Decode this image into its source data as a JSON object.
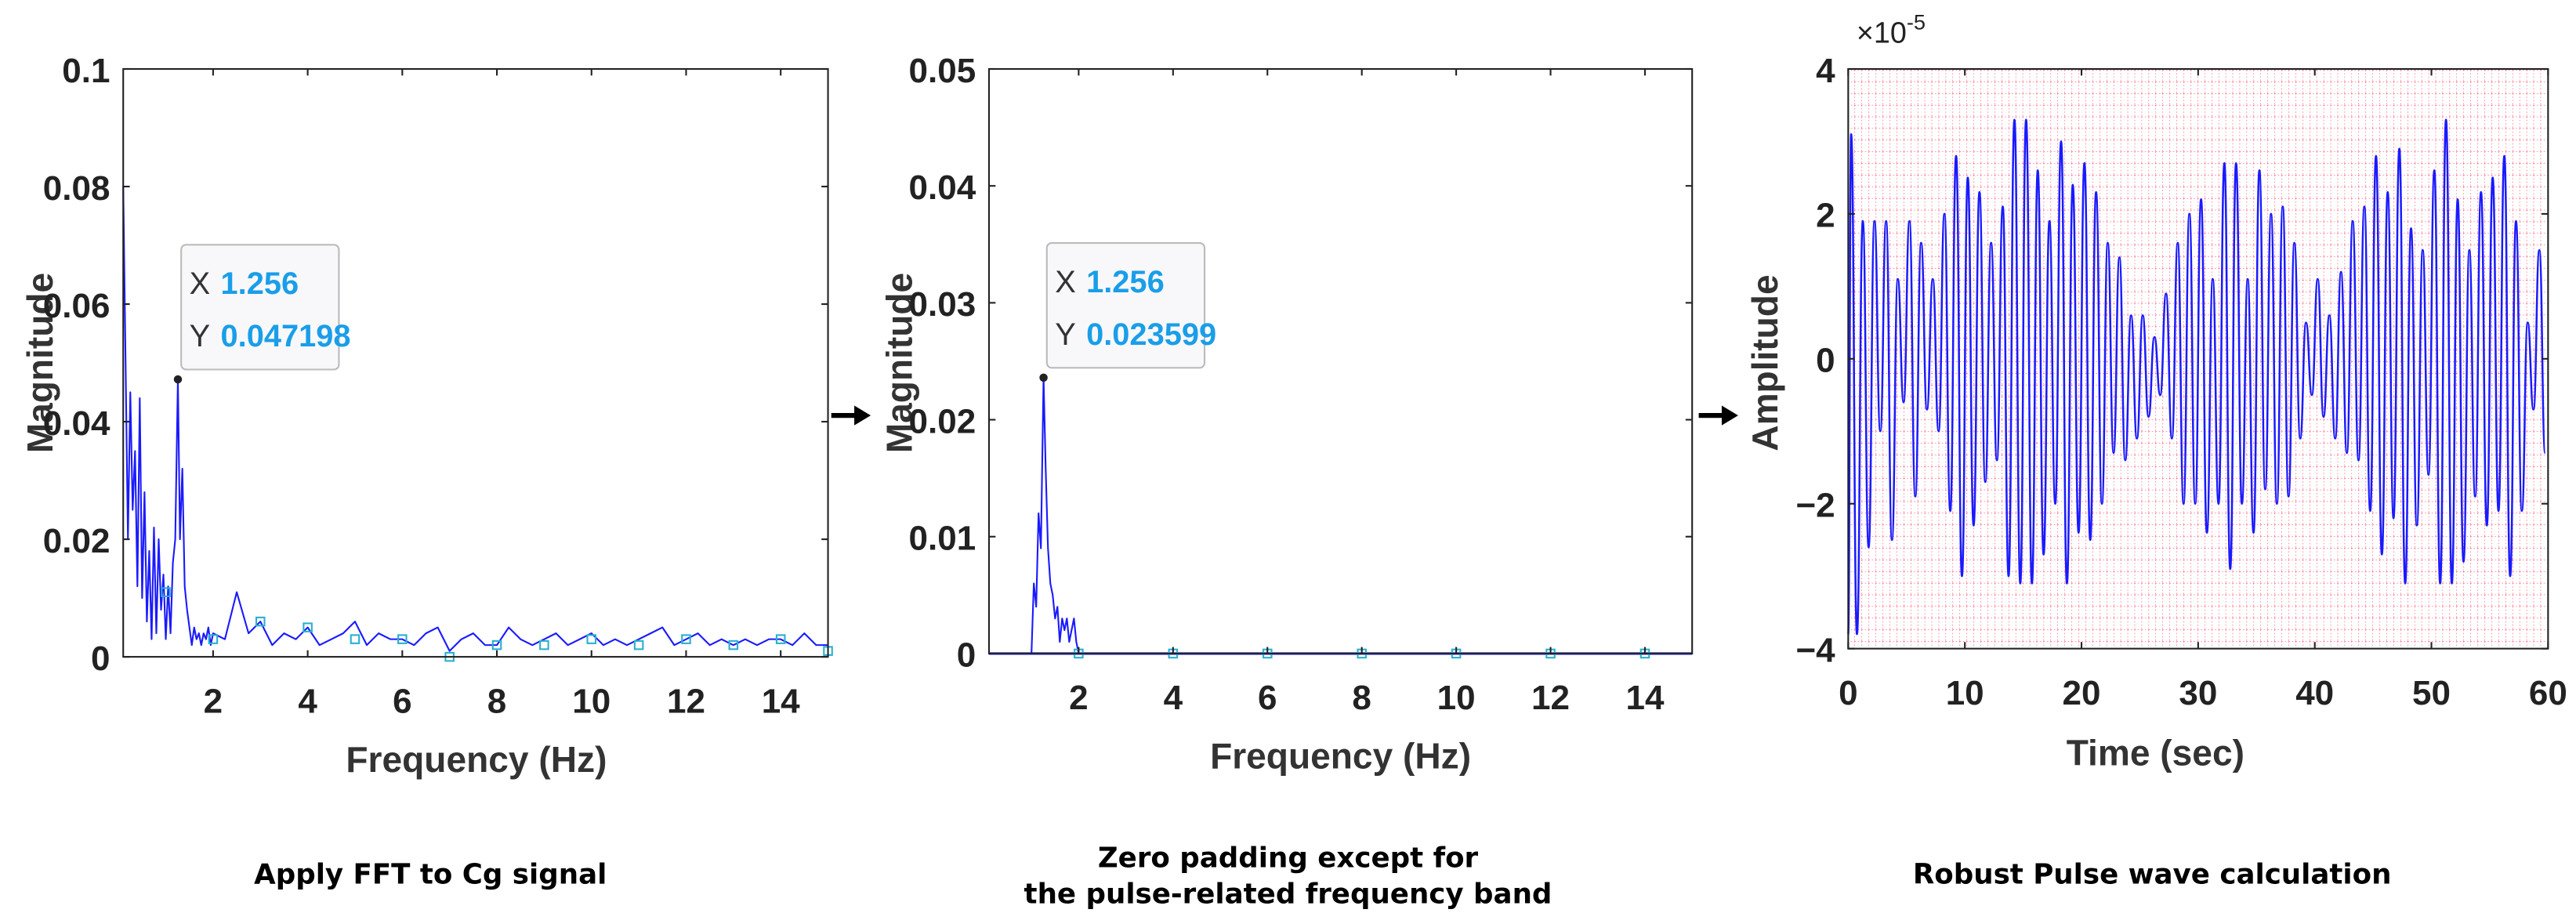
{
  "colors": {
    "line": "#1a1aff",
    "marker": "#2ab0d0",
    "grid": "#ff2a55",
    "datatip_value": "#1a9ee8",
    "axis": "#222222"
  },
  "icons": {
    "arrow": "right-arrow-icon"
  },
  "chart_data": [
    {
      "type": "line",
      "caption": "Apply FFT to Cg signal",
      "xlabel": "Frequency (Hz)",
      "ylabel": "Magnitude",
      "xlim": [
        0.1,
        15
      ],
      "ylim": [
        0,
        0.1
      ],
      "xticks": [
        "2",
        "4",
        "6",
        "8",
        "10",
        "12",
        "14"
      ],
      "xtick_values": [
        2,
        4,
        6,
        8,
        10,
        12,
        14
      ],
      "yticks": [
        "0",
        "0.02",
        "0.04",
        "0.06",
        "0.08",
        "0.1"
      ],
      "ytick_values": [
        0,
        0.02,
        0.04,
        0.06,
        0.08,
        0.1
      ],
      "grid": false,
      "datatip": {
        "x_label": "X",
        "x_value": "1.256",
        "y_label": "Y",
        "y_value": "0.047198",
        "x": 1.256,
        "y": 0.047198
      },
      "x": [
        0.1,
        0.15,
        0.2,
        0.25,
        0.3,
        0.35,
        0.4,
        0.45,
        0.5,
        0.55,
        0.6,
        0.65,
        0.7,
        0.75,
        0.8,
        0.85,
        0.9,
        0.95,
        1.0,
        1.05,
        1.1,
        1.15,
        1.2,
        1.256,
        1.3,
        1.35,
        1.4,
        1.45,
        1.5,
        1.55,
        1.6,
        1.65,
        1.7,
        1.75,
        1.8,
        1.85,
        1.9,
        1.95,
        2.0,
        2.25,
        2.5,
        2.75,
        3.0,
        3.25,
        3.5,
        3.75,
        4.0,
        4.25,
        4.5,
        4.75,
        5.0,
        5.25,
        5.5,
        5.75,
        6.0,
        6.25,
        6.5,
        6.75,
        7.0,
        7.25,
        7.5,
        7.75,
        8.0,
        8.25,
        8.5,
        8.75,
        9.0,
        9.25,
        9.5,
        9.75,
        10.0,
        10.25,
        10.5,
        10.75,
        11.0,
        11.25,
        11.5,
        11.75,
        12.0,
        12.25,
        12.5,
        12.75,
        13.0,
        13.25,
        13.5,
        13.75,
        14.0,
        14.25,
        14.5,
        14.75,
        15.0
      ],
      "y": [
        0.08,
        0.05,
        0.02,
        0.045,
        0.025,
        0.035,
        0.012,
        0.044,
        0.01,
        0.028,
        0.006,
        0.018,
        0.003,
        0.022,
        0.004,
        0.02,
        0.008,
        0.014,
        0.003,
        0.012,
        0.004,
        0.016,
        0.02,
        0.047198,
        0.02,
        0.032,
        0.012,
        0.008,
        0.005,
        0.002,
        0.005,
        0.003,
        0.004,
        0.002,
        0.004,
        0.003,
        0.005,
        0.002,
        0.004,
        0.003,
        0.011,
        0.004,
        0.006,
        0.002,
        0.004,
        0.003,
        0.005,
        0.002,
        0.003,
        0.004,
        0.006,
        0.002,
        0.004,
        0.003,
        0.003,
        0.002,
        0.004,
        0.005,
        0.001,
        0.003,
        0.004,
        0.002,
        0.002,
        0.005,
        0.003,
        0.002,
        0.003,
        0.004,
        0.002,
        0.003,
        0.004,
        0.002,
        0.003,
        0.002,
        0.003,
        0.004,
        0.005,
        0.002,
        0.003,
        0.004,
        0.002,
        0.003,
        0.002,
        0.003,
        0.002,
        0.003,
        0.003,
        0.002,
        0.004,
        0.002,
        0.002
      ],
      "markers_x": [
        1,
        2,
        3,
        4,
        5,
        6,
        7,
        8,
        9,
        10,
        11,
        12,
        13,
        14,
        15
      ],
      "markers_y": [
        0.011,
        0.003,
        0.006,
        0.005,
        0.003,
        0.003,
        0.0,
        0.002,
        0.002,
        0.003,
        0.002,
        0.003,
        0.002,
        0.003,
        0.001
      ]
    },
    {
      "type": "line",
      "caption_line1": "Zero padding except for",
      "caption_line2": "the pulse-related frequency band",
      "xlabel": "Frequency (Hz)",
      "ylabel": "Magnitude",
      "xlim": [
        0.1,
        15
      ],
      "ylim": [
        0,
        0.05
      ],
      "xticks": [
        "2",
        "4",
        "6",
        "8",
        "10",
        "12",
        "14"
      ],
      "xtick_values": [
        2,
        4,
        6,
        8,
        10,
        12,
        14
      ],
      "yticks": [
        "0",
        "0.01",
        "0.02",
        "0.03",
        "0.04",
        "0.05"
      ],
      "ytick_values": [
        0,
        0.01,
        0.02,
        0.03,
        0.04,
        0.05
      ],
      "grid": false,
      "datatip": {
        "x_label": "X",
        "x_value": "1.256",
        "y_label": "Y",
        "y_value": "0.023599",
        "x": 1.256,
        "y": 0.023599
      },
      "x": [
        0.1,
        1.0,
        1.05,
        1.1,
        1.15,
        1.2,
        1.256,
        1.3,
        1.35,
        1.4,
        1.45,
        1.5,
        1.55,
        1.6,
        1.65,
        1.7,
        1.75,
        1.8,
        1.85,
        1.9,
        1.95,
        2.0,
        15.0
      ],
      "y": [
        0,
        0,
        0.006,
        0.004,
        0.012,
        0.009,
        0.023599,
        0.016,
        0.009,
        0.006,
        0.005,
        0.003,
        0.004,
        0.001,
        0.003,
        0.002,
        0.003,
        0.001,
        0.002,
        0.003,
        0.001,
        0,
        0
      ],
      "markers_x": [
        2,
        4,
        6,
        8,
        10,
        12,
        14
      ],
      "markers_y": [
        0,
        0,
        0,
        0,
        0,
        0,
        0
      ]
    },
    {
      "type": "line",
      "caption": "Robust Pulse wave calculation",
      "xlabel": "Time (sec)",
      "ylabel": "Amplitude",
      "exponent_label": "×10",
      "exponent": "-5",
      "xlim": [
        0,
        60
      ],
      "ylim": [
        -4,
        4
      ],
      "xticks": [
        "0",
        "10",
        "20",
        "30",
        "40",
        "50",
        "60"
      ],
      "xtick_values": [
        0,
        10,
        20,
        30,
        40,
        50,
        60
      ],
      "yticks": [
        "−4",
        "−2",
        "0",
        "2",
        "4"
      ],
      "ytick_values": [
        -4,
        -2,
        0,
        2,
        4
      ],
      "grid": "minor dotted",
      "time": [
        0,
        1,
        2,
        3,
        4,
        5,
        6,
        7,
        8,
        9,
        10,
        11,
        12,
        13,
        14,
        15,
        16,
        17,
        18,
        19,
        20,
        21,
        22,
        23,
        24,
        25,
        26,
        27,
        28,
        29,
        30,
        31,
        32,
        33,
        34,
        35,
        36,
        37,
        38,
        39,
        40,
        41,
        42,
        43,
        44,
        45,
        46,
        47,
        48,
        49,
        50,
        51,
        52,
        53,
        54,
        55,
        56,
        57,
        58,
        59
      ],
      "local_maxima": [
        3.1,
        1.9,
        1.9,
        1.9,
        1.1,
        1.9,
        1.6,
        1.1,
        2.0,
        2.8,
        2.5,
        2.3,
        1.6,
        2.1,
        3.3,
        3.3,
        2.6,
        1.9,
        3.0,
        2.4,
        2.7,
        2.3,
        1.6,
        1.4,
        0.6,
        0.6,
        0.3,
        0.9,
        1.6,
        2.0,
        2.2,
        1.1,
        2.7,
        2.7,
        1.1,
        2.6,
        2.0,
        2.1,
        1.6,
        0.5,
        1.1,
        0.6,
        1.2,
        1.9,
        2.1,
        2.8,
        2.3,
        2.9,
        1.8,
        1.5,
        2.6,
        3.3,
        2.2,
        1.5,
        2.3,
        2.5,
        2.8,
        1.9,
        0.5,
        1.5
      ],
      "local_minima": [
        -3.8,
        -2.6,
        -1.0,
        -2.5,
        -0.6,
        -1.9,
        -0.7,
        -1.0,
        -2.1,
        -3.0,
        -2.3,
        -1.7,
        -1.4,
        -3.0,
        -3.1,
        -3.1,
        -2.7,
        -2.0,
        -3.1,
        -2.4,
        -2.5,
        -2.0,
        -1.3,
        -1.4,
        -1.1,
        -0.8,
        -0.5,
        -1.1,
        -2.0,
        -2.0,
        -2.4,
        -2.0,
        -2.9,
        -2.0,
        -2.4,
        -1.8,
        -2.0,
        -1.9,
        -1.1,
        -0.5,
        -0.8,
        -1.1,
        -1.3,
        -1.4,
        -2.1,
        -2.7,
        -2.2,
        -3.1,
        -2.3,
        -1.6,
        -3.1,
        -3.1,
        -2.8,
        -1.9,
        -2.3,
        -2.1,
        -3.0,
        -2.1,
        -0.7,
        -1.3
      ]
    }
  ]
}
